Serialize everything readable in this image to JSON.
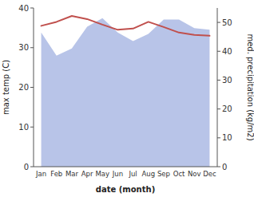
{
  "chart_data": {
    "type": "line",
    "xlabel": "date (month)",
    "ylabel": "max temp (C)",
    "y2label": "med. precipitation (kg/m2)",
    "categories": [
      "Jan",
      "Feb",
      "Mar",
      "Apr",
      "May",
      "Jun",
      "Jul",
      "Aug",
      "Sep",
      "Oct",
      "Nov",
      "Dec"
    ],
    "ylim": [
      0,
      40
    ],
    "yticks": [
      0,
      10,
      20,
      30,
      40
    ],
    "y2lim": [
      0,
      55
    ],
    "y2ticks": [
      0,
      10,
      20,
      30,
      40,
      50
    ],
    "series": [
      {
        "type": "area",
        "axis": "y2",
        "color": "#b8c4e8",
        "values": [
          46.5,
          38.5,
          41.0,
          48.5,
          51.5,
          46.5,
          43.5,
          46.0,
          51.0,
          51.0,
          48.0,
          47.5
        ]
      },
      {
        "type": "line",
        "color": "#c0504d",
        "values": [
          35.5,
          36.5,
          38.0,
          37.2,
          35.8,
          34.5,
          34.8,
          36.5,
          35.2,
          33.8,
          33.2,
          33.0
        ]
      }
    ]
  }
}
